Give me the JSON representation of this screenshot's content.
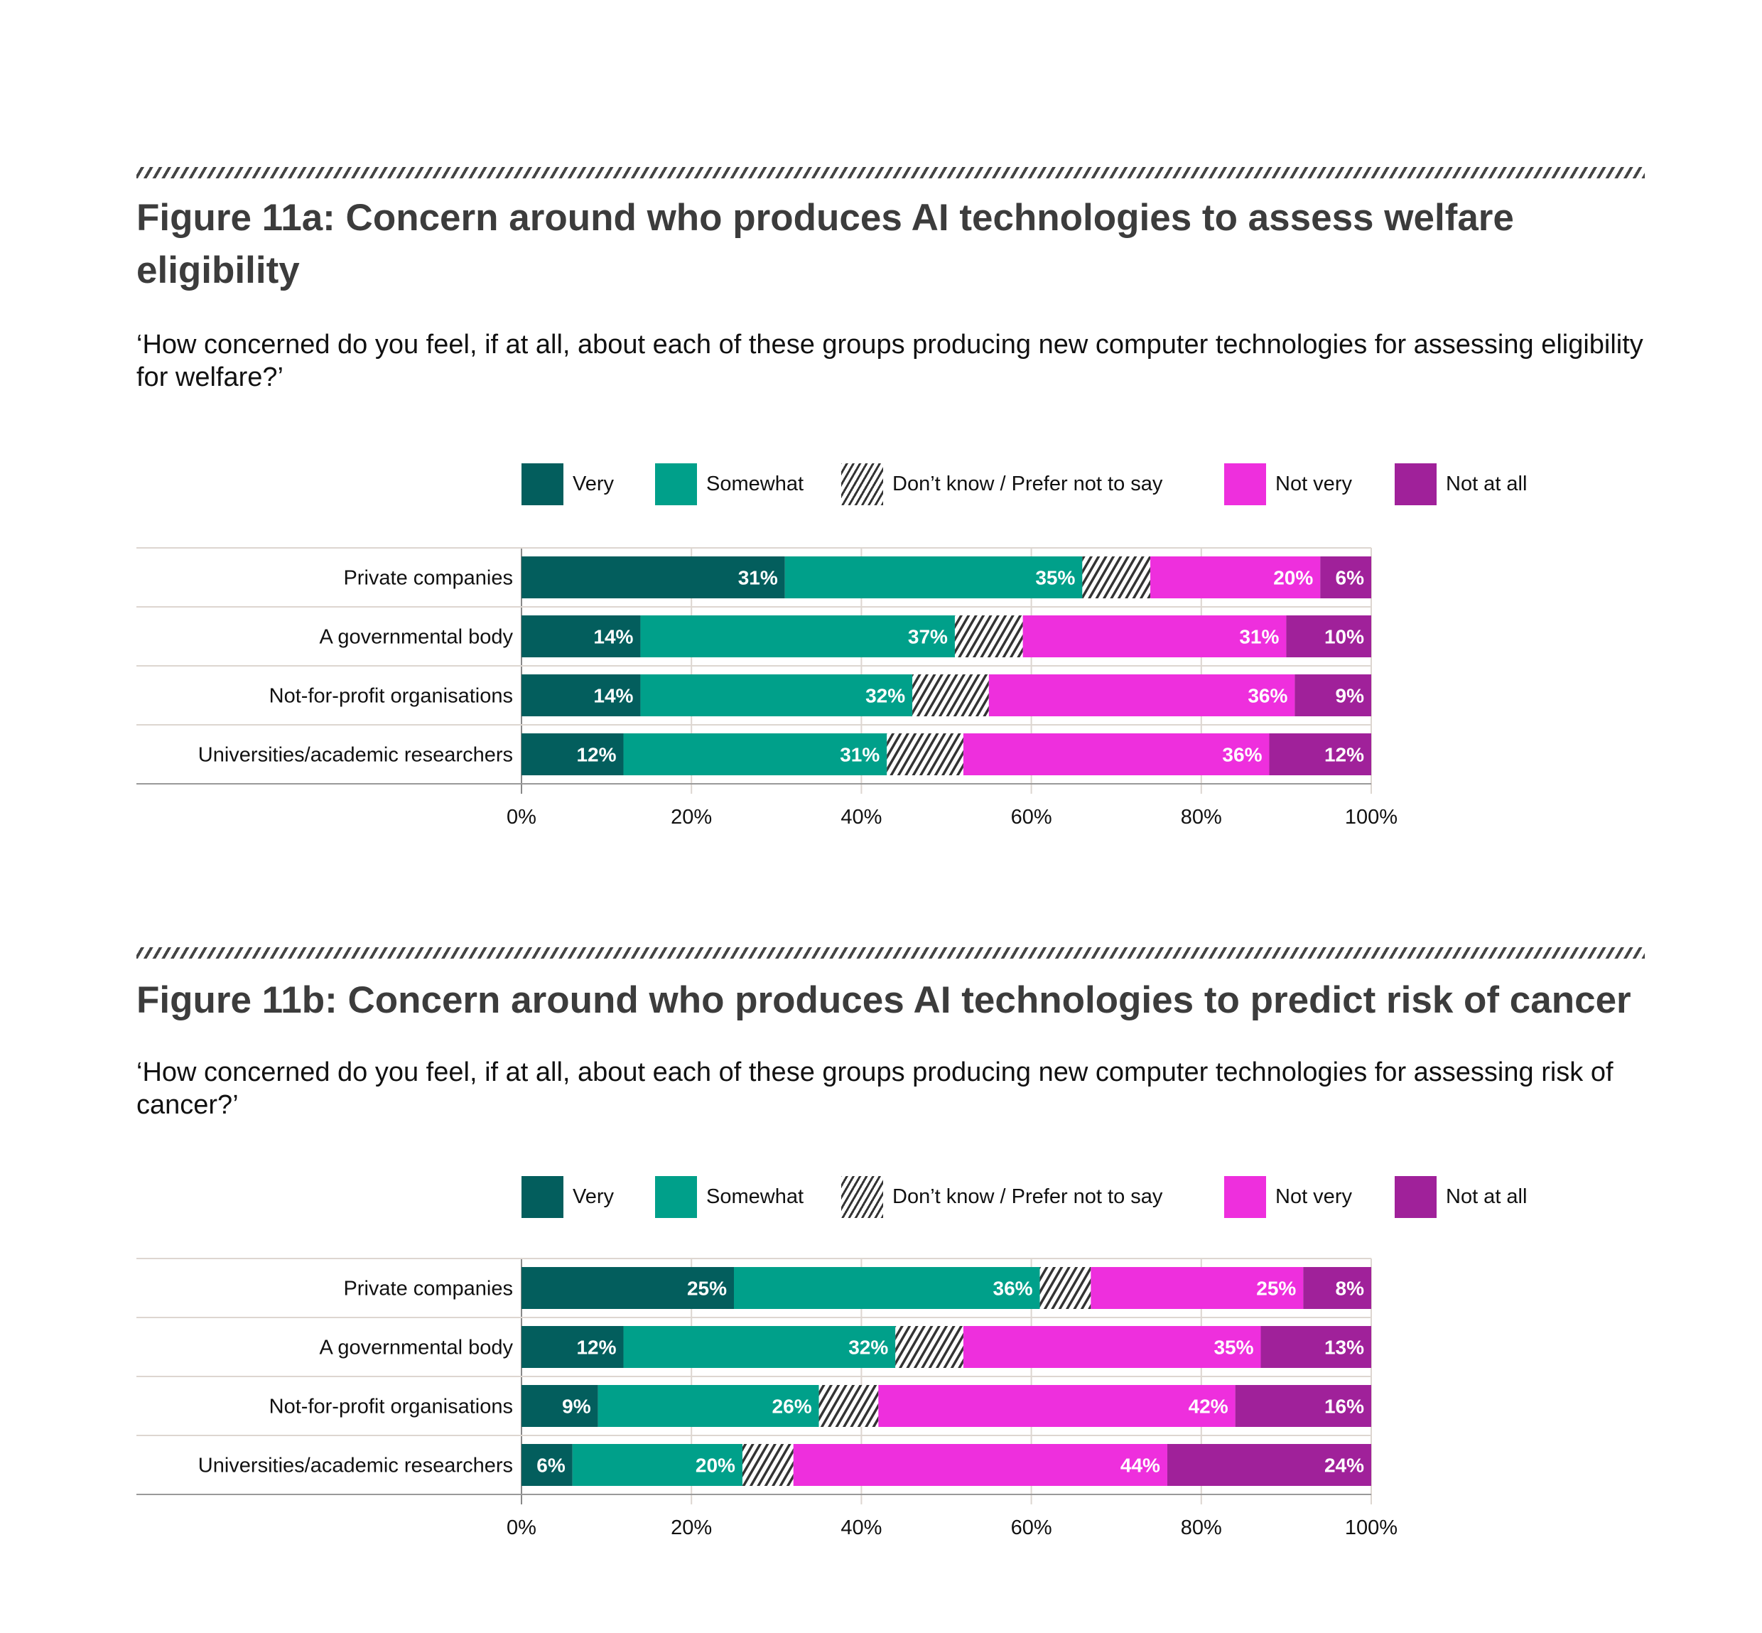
{
  "colors": {
    "very": "#035e5d",
    "somewhat": "#00a08a",
    "dont_know": "hatch",
    "not_very": "#ee2fdd",
    "not_at_all": "#a0219a"
  },
  "legend": [
    "Very",
    "Somewhat",
    "Don’t know / Prefer not to say",
    "Not very",
    "Not at all"
  ],
  "figures": [
    {
      "title": "Figure 11a: Concern around who produces AI technologies to assess welfare eligibility",
      "question": "‘How concerned do you feel, if at all, about each of these groups producing new computer technologies for assessing eligibility for welfare?’"
    },
    {
      "title": "Figure 11b: Concern around who produces AI technologies to predict risk of cancer",
      "question": "‘How concerned do you feel, if at all, about each of these groups producing new computer technologies for assessing risk of cancer?’"
    }
  ],
  "chart_data": [
    {
      "type": "bar",
      "orientation": "horizontal",
      "stacked": true,
      "title": "Figure 11a: Concern around who produces AI technologies to assess welfare eligibility",
      "categories": [
        "Private companies",
        "A governmental body",
        "Not-for-profit organisations",
        "Universities/academic researchers"
      ],
      "series": [
        {
          "name": "Very",
          "values": [
            31,
            14,
            14,
            12
          ]
        },
        {
          "name": "Somewhat",
          "values": [
            35,
            37,
            32,
            31
          ]
        },
        {
          "name": "Don’t know / Prefer not to say",
          "values": [
            8,
            8,
            9,
            9
          ]
        },
        {
          "name": "Not very",
          "values": [
            20,
            31,
            36,
            36
          ]
        },
        {
          "name": "Not at all",
          "values": [
            6,
            10,
            9,
            12
          ]
        }
      ],
      "xlim": [
        0,
        100
      ],
      "xticks": [
        "0%",
        "20%",
        "40%",
        "60%",
        "80%",
        "100%"
      ],
      "legend": "top",
      "grid": true
    },
    {
      "type": "bar",
      "orientation": "horizontal",
      "stacked": true,
      "title": "Figure 11b: Concern around who produces AI technologies to predict risk of cancer",
      "categories": [
        "Private companies",
        "A governmental body",
        "Not-for-profit organisations",
        "Universities/academic researchers"
      ],
      "series": [
        {
          "name": "Very",
          "values": [
            25,
            12,
            9,
            6
          ]
        },
        {
          "name": "Somewhat",
          "values": [
            36,
            32,
            26,
            20
          ]
        },
        {
          "name": "Don’t know / Prefer not to say",
          "values": [
            6,
            8,
            7,
            6
          ]
        },
        {
          "name": "Not very",
          "values": [
            25,
            35,
            42,
            44
          ]
        },
        {
          "name": "Not at all",
          "values": [
            8,
            13,
            16,
            24
          ]
        }
      ],
      "xlim": [
        0,
        100
      ],
      "xticks": [
        "0%",
        "20%",
        "40%",
        "60%",
        "80%",
        "100%"
      ],
      "legend": "top",
      "grid": true
    }
  ]
}
